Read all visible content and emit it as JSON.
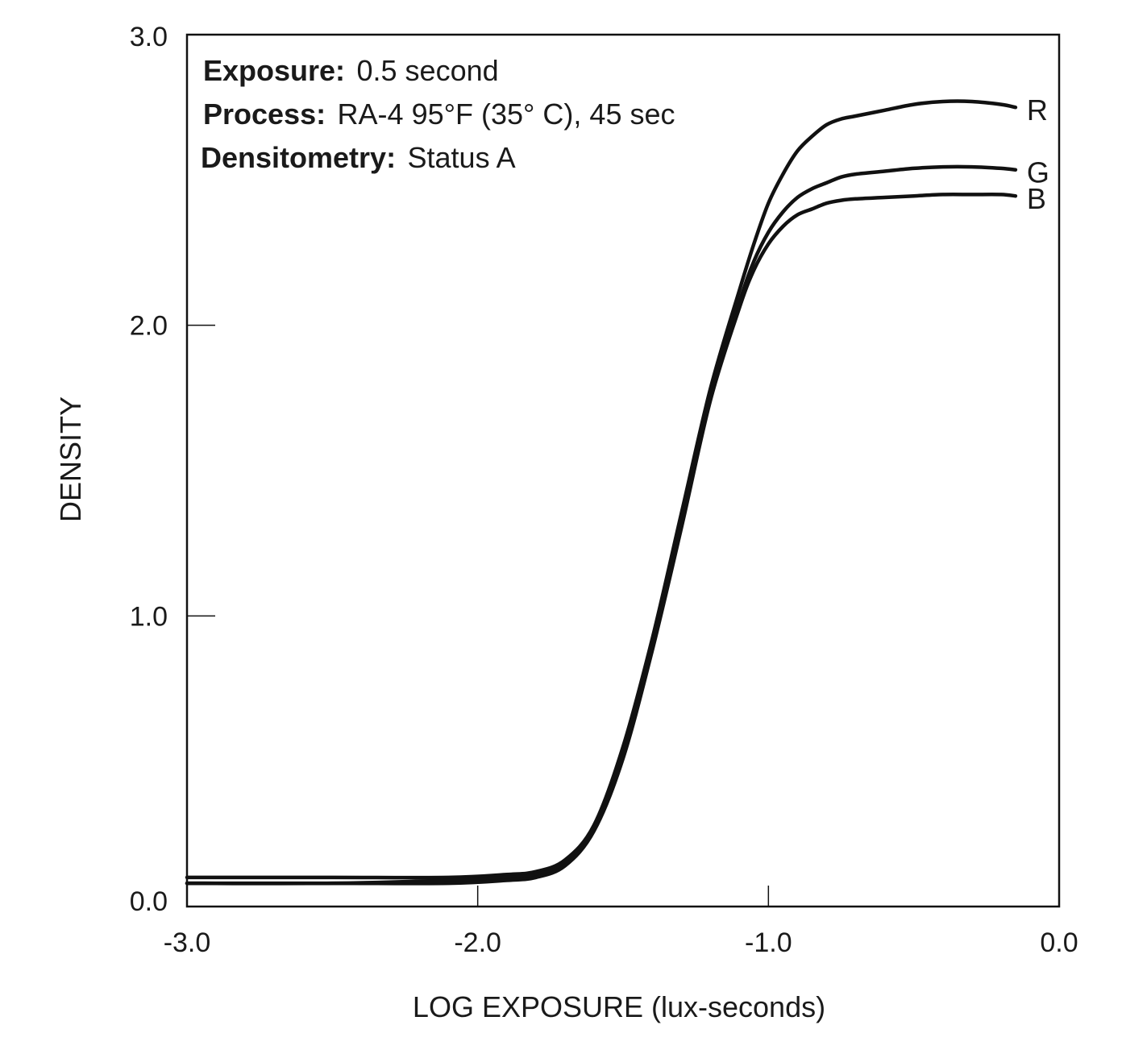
{
  "chart_data": {
    "type": "line",
    "title": "",
    "xlabel": "LOG EXPOSURE (lux-seconds)",
    "ylabel": "DENSITY",
    "xlim": [
      -3.0,
      0.0
    ],
    "ylim": [
      0.0,
      3.0
    ],
    "x_ticks": [
      -3.0,
      -2.0,
      -1.0,
      0.0
    ],
    "x_tick_labels": [
      "-3.0",
      "-2.0",
      "-1.0",
      "0.0"
    ],
    "y_ticks": [
      0.0,
      1.0,
      2.0,
      3.0
    ],
    "y_tick_labels": [
      "0.0",
      "1.0",
      "2.0",
      "3.0"
    ],
    "grid": false,
    "legend": "none",
    "annotations": [
      {
        "key": "Exposure:",
        "value": "0.5 second"
      },
      {
        "key": "Process:",
        "value": "RA-4 95°F (35° C), 45 sec"
      },
      {
        "key": "Densitometry:",
        "value": "Status A"
      }
    ],
    "series": [
      {
        "name": "R",
        "x": [
          -3.0,
          -2.5,
          -2.1,
          -1.9,
          -1.8,
          -1.7,
          -1.6,
          -1.5,
          -1.4,
          -1.3,
          -1.2,
          -1.1,
          -1.05,
          -1.0,
          -0.95,
          -0.9,
          -0.85,
          -0.8,
          -0.75,
          -0.7,
          -0.6,
          -0.5,
          -0.4,
          -0.3,
          -0.2,
          -0.15
        ],
        "y": [
          0.1,
          0.1,
          0.1,
          0.11,
          0.12,
          0.16,
          0.28,
          0.55,
          0.92,
          1.35,
          1.78,
          2.12,
          2.28,
          2.42,
          2.52,
          2.6,
          2.65,
          2.69,
          2.71,
          2.72,
          2.74,
          2.76,
          2.77,
          2.77,
          2.76,
          2.75
        ]
      },
      {
        "name": "G",
        "x": [
          -3.0,
          -2.5,
          -2.1,
          -1.9,
          -1.8,
          -1.7,
          -1.6,
          -1.5,
          -1.4,
          -1.3,
          -1.2,
          -1.1,
          -1.05,
          -1.0,
          -0.95,
          -0.9,
          -0.85,
          -0.8,
          -0.75,
          -0.7,
          -0.6,
          -0.5,
          -0.4,
          -0.3,
          -0.2,
          -0.15
        ],
        "y": [
          0.08,
          0.08,
          0.09,
          0.1,
          0.11,
          0.15,
          0.27,
          0.52,
          0.89,
          1.32,
          1.76,
          2.08,
          2.22,
          2.32,
          2.39,
          2.44,
          2.47,
          2.49,
          2.51,
          2.52,
          2.53,
          2.54,
          2.545,
          2.545,
          2.54,
          2.535
        ]
      },
      {
        "name": "B",
        "x": [
          -3.0,
          -2.5,
          -2.1,
          -1.9,
          -1.8,
          -1.7,
          -1.6,
          -1.5,
          -1.4,
          -1.3,
          -1.2,
          -1.1,
          -1.05,
          -1.0,
          -0.95,
          -0.9,
          -0.85,
          -0.8,
          -0.75,
          -0.7,
          -0.6,
          -0.5,
          -0.4,
          -0.3,
          -0.2,
          -0.15
        ],
        "y": [
          0.08,
          0.08,
          0.08,
          0.09,
          0.1,
          0.14,
          0.26,
          0.51,
          0.88,
          1.3,
          1.74,
          2.06,
          2.19,
          2.28,
          2.34,
          2.38,
          2.4,
          2.42,
          2.43,
          2.435,
          2.44,
          2.445,
          2.45,
          2.45,
          2.45,
          2.445
        ]
      }
    ]
  }
}
